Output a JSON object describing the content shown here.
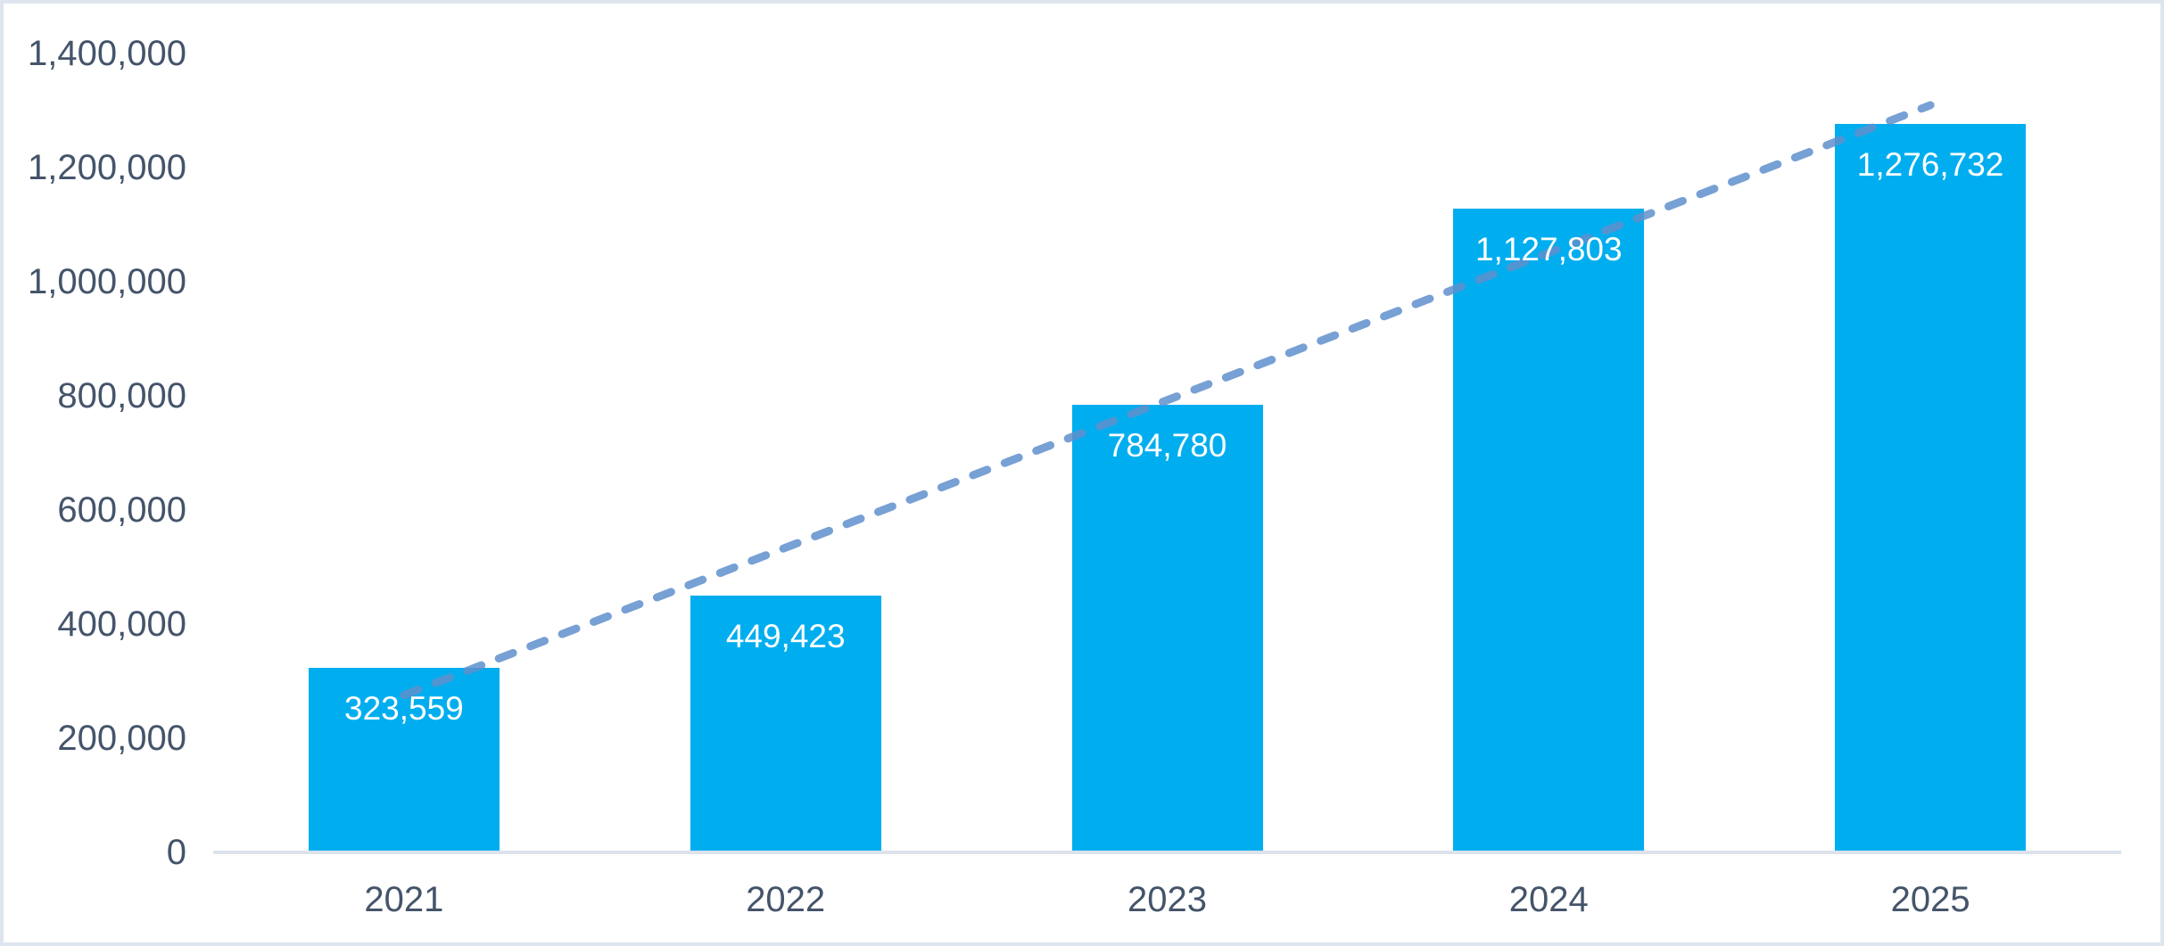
{
  "chart_data": {
    "type": "bar",
    "title": "",
    "xlabel": "",
    "ylabel": "",
    "categories": [
      "2021",
      "2022",
      "2023",
      "2024",
      "2025"
    ],
    "values": [
      323559,
      449423,
      784780,
      1127803,
      1276732
    ],
    "data_labels": [
      "323,559",
      "449,423",
      "784,780",
      "1,127,803",
      "1,276,732"
    ],
    "y_axis": {
      "min": 0,
      "max": 1400000,
      "step": 200000,
      "tick_labels": [
        "0",
        "200,000",
        "400,000",
        "600,000",
        "800,000",
        "1,000,000",
        "1,200,000",
        "1,400,000"
      ]
    },
    "gridlines": false,
    "legend": {
      "visible": false
    },
    "trendline": {
      "type": "linear",
      "style": "dashed"
    },
    "colors": {
      "bar": "#00AEEF",
      "trendline": "#6090CD",
      "axis_text": "#44546A",
      "data_label_text": "#FFFFFF",
      "axis_line": "#DDE3EC",
      "frame_border": "#DEE5EE",
      "background": "#FFFFFF"
    }
  }
}
